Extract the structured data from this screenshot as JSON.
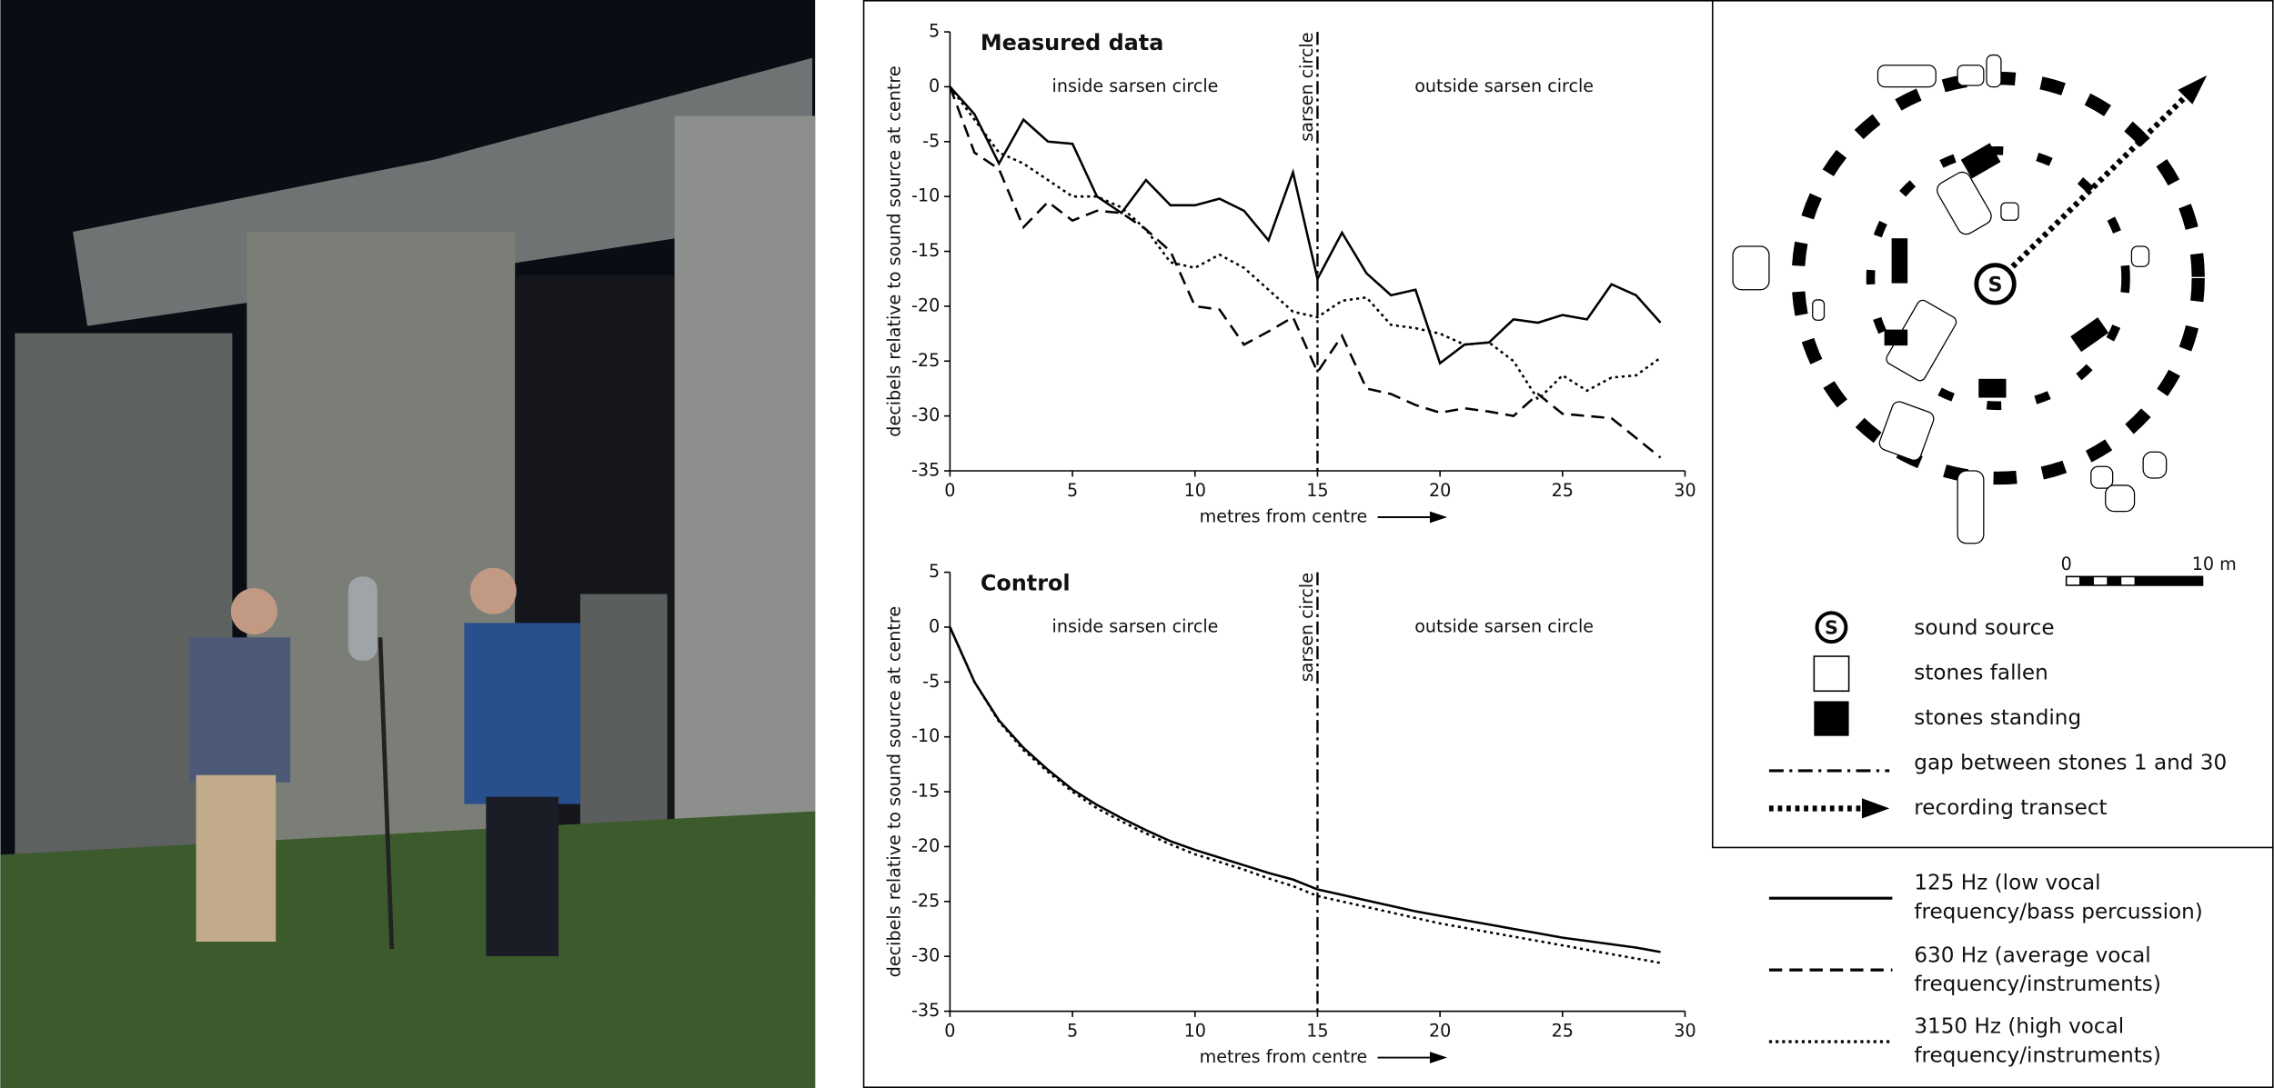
{
  "chart_data": [
    {
      "type": "line",
      "title": "Measured data",
      "xlabel": "metres from centre",
      "ylabel": "decibels relative to sound source at centre",
      "regions": [
        "inside sarsen circle",
        "outside sarsen circle"
      ],
      "marker": {
        "x": 15,
        "label": "sarsen circle"
      },
      "xlim": [
        0,
        30
      ],
      "xticks": [
        0,
        5,
        10,
        15,
        20,
        25,
        30
      ],
      "ylim": [
        -35,
        5
      ],
      "yticks": [
        5,
        0,
        -5,
        -10,
        -15,
        -20,
        -25,
        -30,
        -35
      ],
      "x": [
        0,
        1,
        2,
        3,
        4,
        5,
        6,
        7,
        8,
        9,
        10,
        11,
        12,
        13,
        14,
        15,
        16,
        17,
        18,
        19,
        20,
        21,
        22,
        23,
        24,
        25,
        26,
        27,
        28,
        29
      ],
      "series": [
        {
          "name": "125 Hz (low vocal frequency/bass percussion)",
          "color": "#000000",
          "style": "solid",
          "values": [
            0,
            -2.5,
            -7,
            -3,
            -5,
            -5.2,
            -10,
            -11.5,
            -8.5,
            -10.8,
            -10.8,
            -10.2,
            -11.3,
            -14,
            -7.8,
            -17.5,
            -13.3,
            -17,
            -19,
            -18.5,
            -25.2,
            -23.5,
            -23.3,
            -21.2,
            -21.5,
            -20.8,
            -21.2,
            -18,
            -19,
            -21.5
          ]
        },
        {
          "name": "630 Hz (average vocal frequency/instruments)",
          "color": "#000000",
          "style": "dashed",
          "values": [
            0,
            -6,
            -7.5,
            -12.8,
            -10.5,
            -12.2,
            -11.3,
            -11.5,
            -13,
            -15,
            -20,
            -20.3,
            -23.5,
            -22.3,
            -21,
            -26,
            -22.7,
            -27.5,
            -28,
            -29,
            -29.7,
            -29.3,
            -29.6,
            -30,
            -28,
            -29.8,
            -30,
            -30.2,
            -32,
            -33.8
          ]
        },
        {
          "name": "3150 Hz (high vocal frequency/instruments)",
          "color": "#000000",
          "style": "dotted",
          "values": [
            0,
            -3,
            -6,
            -7,
            -8.5,
            -10,
            -10,
            -11,
            -13,
            -16,
            -16.5,
            -15.3,
            -16.5,
            -18.5,
            -20.5,
            -21,
            -19.5,
            -19.2,
            -21.7,
            -22,
            -22.5,
            -23.5,
            -23.3,
            -25,
            -28.5,
            -26.3,
            -27.7,
            -26.5,
            -26.3,
            -24.7
          ]
        }
      ]
    },
    {
      "type": "line",
      "title": "Control",
      "xlabel": "metres from centre",
      "ylabel": "decibels relative to sound source at centre",
      "regions": [
        "inside sarsen circle",
        "outside sarsen circle"
      ],
      "marker": {
        "x": 15,
        "label": "sarsen circle"
      },
      "xlim": [
        0,
        30
      ],
      "xticks": [
        0,
        5,
        10,
        15,
        20,
        25,
        30
      ],
      "ylim": [
        -35,
        5
      ],
      "yticks": [
        5,
        0,
        -5,
        -10,
        -15,
        -20,
        -25,
        -30,
        -35
      ],
      "x": [
        0,
        1,
        2,
        3,
        4,
        5,
        6,
        7,
        8,
        9,
        10,
        11,
        12,
        13,
        14,
        15,
        16,
        17,
        18,
        19,
        20,
        21,
        22,
        23,
        24,
        25,
        26,
        27,
        28,
        29
      ],
      "series": [
        {
          "color": "#000000",
          "style": "solid",
          "values": [
            0,
            -5,
            -8.5,
            -11,
            -13,
            -14.8,
            -16.2,
            -17.4,
            -18.5,
            -19.5,
            -20.3,
            -21,
            -21.7,
            -22.4,
            -23,
            -23.9,
            -24.4,
            -24.9,
            -25.4,
            -25.9,
            -26.3,
            -26.7,
            -27.1,
            -27.5,
            -27.9,
            -28.3,
            -28.6,
            -28.9,
            -29.2,
            -29.6
          ]
        },
        {
          "color": "#000000",
          "style": "dotted",
          "values": [
            0,
            -5,
            -8.6,
            -11.2,
            -13.2,
            -15,
            -16.5,
            -17.7,
            -18.8,
            -19.8,
            -20.7,
            -21.4,
            -22.1,
            -22.9,
            -23.6,
            -24.5,
            -25,
            -25.5,
            -26,
            -26.5,
            -27,
            -27.4,
            -27.8,
            -28.2,
            -28.6,
            -29,
            -29.4,
            -29.8,
            -30.2,
            -30.6
          ]
        }
      ]
    }
  ],
  "map": {
    "source_label": "S",
    "scale_labels": [
      "0",
      "10 m"
    ],
    "legend": [
      "sound source",
      "stones fallen",
      "stones standing",
      "gap between stones 1 and 30",
      "recording transect"
    ]
  }
}
